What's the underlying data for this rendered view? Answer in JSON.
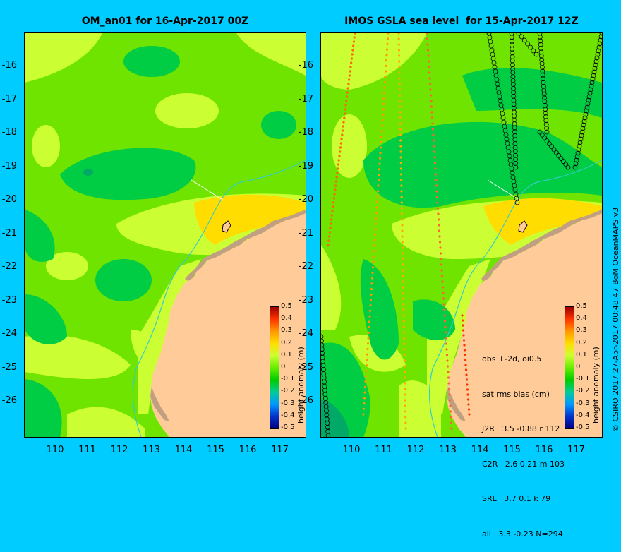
{
  "left_panel": {
    "title": "OM_an01 for 16-Apr-2017 00Z"
  },
  "right_panel": {
    "title": "IMOS GSLA sea level  for 15-Apr-2017 12Z"
  },
  "axes": {
    "y_ticks": [
      "-16",
      "-17",
      "-18",
      "-19",
      "-20",
      "-21",
      "-22",
      "-23",
      "-24",
      "-25",
      "-26"
    ],
    "x_ticks": [
      "110",
      "111",
      "112",
      "113",
      "114",
      "115",
      "116",
      "117"
    ]
  },
  "colorbar": {
    "label": "height anomaly (m)",
    "ticks": [
      "0.5",
      "0.4",
      "0.3",
      "0.2",
      "0.1",
      "0",
      "-0.1",
      "-0.2",
      "-0.3",
      "-0.4",
      "-0.5"
    ],
    "range": [
      -0.5,
      0.5
    ],
    "colors": [
      "#000080",
      "#0033cc",
      "#0099ff",
      "#00cc99",
      "#00cc00",
      "#66ee00",
      "#ccff33",
      "#ffdd00",
      "#ff9900",
      "#ff3300",
      "#990000"
    ]
  },
  "stats": {
    "line1": "obs +-2d, oi0.5",
    "line2": "sat rms bias (cm)",
    "line3": "J2R   3.5 -0.88 r 112",
    "line4": "C2R   2.6 0.21 m 103",
    "line5": "SRL   3.7 0.1 k 79",
    "line6": "all   3.3 -0.23 N=294"
  },
  "credit": "© CSIRO 2017  27-Apr-2017 00:48:47 BoM OceanMAPS v3",
  "colors": {
    "background": "#00ccff",
    "land": "#ffcc99",
    "shelf": "#c0a080",
    "anomaly_positive": "#ccff33",
    "anomaly_neutral": "#6ee400",
    "anomaly_negative": "#00cc44"
  }
}
